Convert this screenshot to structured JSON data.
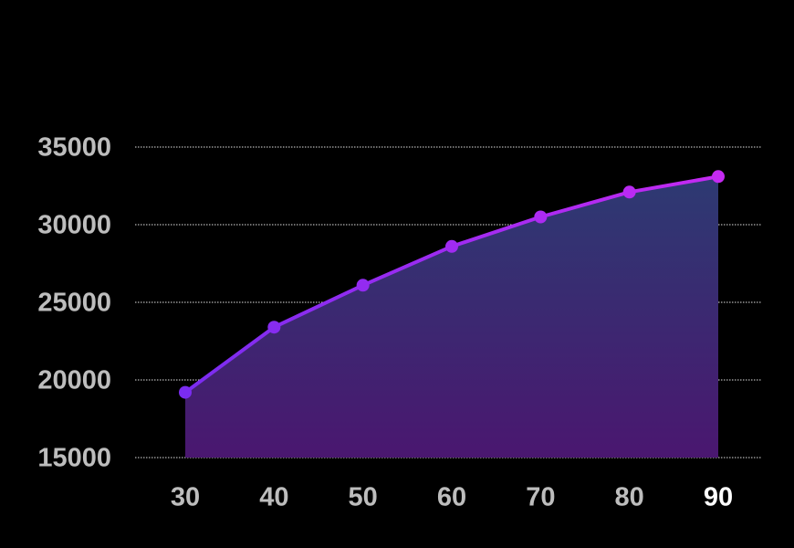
{
  "chart_data": {
    "type": "area",
    "x": [
      30,
      40,
      50,
      60,
      70,
      80,
      90
    ],
    "series": [
      {
        "color": "#8a2be2",
        "values": [
          19200,
          23400,
          26100,
          28600,
          30500,
          32100,
          33100
        ]
      }
    ],
    "xlim": [
      30,
      90
    ],
    "xticks": [
      30,
      40,
      50,
      60,
      70,
      80,
      90
    ],
    "ylim": [
      15000,
      35000
    ],
    "yticks": [
      15000,
      20000,
      25000,
      30000,
      35000
    ],
    "grid": true
  }
}
